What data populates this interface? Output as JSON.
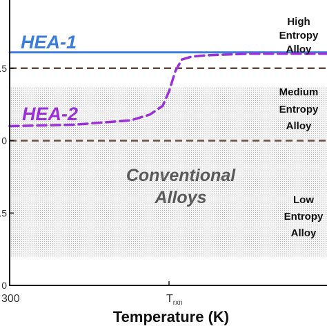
{
  "chart_data": {
    "type": "line",
    "xlabel": "Temperature (K)",
    "ylabel": "",
    "x_tick_labels": [
      {
        "label": "300",
        "pos": 0
      },
      {
        "label": "T",
        "sub": "rxn",
        "pos": 0.5
      }
    ],
    "y_tick_labels": [
      "0",
      ".5",
      "0",
      ".5",
      "0"
    ],
    "xlim": [
      0,
      1
    ],
    "ylim": [
      0,
      2.0
    ],
    "grid": false,
    "thresholds": [
      {
        "name": "upper-threshold",
        "value": 1.5,
        "style": "dashed",
        "color": "#6b4a3c"
      },
      {
        "name": "lower-threshold",
        "value": 1.0,
        "style": "dashed",
        "color": "#6b4a3c"
      }
    ],
    "shaded_region": {
      "y_from": 0.2,
      "y_to": 1.37,
      "x_from": 0,
      "x_to": 1
    },
    "series": [
      {
        "name": "HEA-1",
        "color": "#3b7dd8",
        "style": "solid",
        "x": [
          0,
          1
        ],
        "y": [
          1.61,
          1.61
        ]
      },
      {
        "name": "HEA-2",
        "color": "#9b30d8",
        "style": "dashed",
        "x": [
          0,
          0.2,
          0.38,
          0.44,
          0.48,
          0.5,
          0.52,
          0.54,
          0.57,
          0.62,
          0.75,
          0.9,
          1
        ],
        "y": [
          1.1,
          1.11,
          1.14,
          1.18,
          1.24,
          1.34,
          1.48,
          1.56,
          1.58,
          1.59,
          1.6,
          1.6,
          1.6
        ]
      }
    ],
    "annotations": {
      "series_label_1": "HEA-1",
      "series_label_2": "HEA-2",
      "conventional_line1": "Conventional",
      "conventional_line2": "Alloys",
      "high": [
        "High",
        "Entropy",
        "Alloy"
      ],
      "medium": [
        "Medium",
        "Entropy",
        "Alloy"
      ],
      "low": [
        "Low",
        "Entropy",
        "Alloy"
      ]
    }
  }
}
